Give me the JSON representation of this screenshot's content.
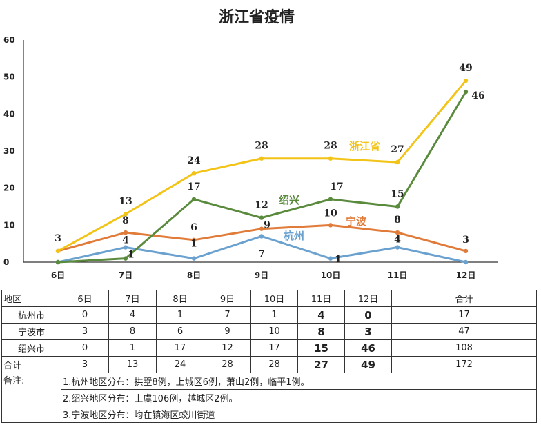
{
  "chart_data": {
    "type": "line",
    "title": "浙江省疫情",
    "categories": [
      "6日",
      "7日",
      "8日",
      "9日",
      "10日",
      "11日",
      "12日"
    ],
    "yticks": [
      "0",
      "10",
      "20",
      "30",
      "40",
      "50",
      "60"
    ],
    "ylim": [
      0,
      60
    ],
    "grid": false,
    "series": [
      {
        "name": "浙江省",
        "color": "#f2c418",
        "values": [
          3,
          13,
          24,
          28,
          28,
          27,
          49
        ]
      },
      {
        "name": "绍兴",
        "color": "#5a8a3c",
        "values": [
          0,
          1,
          17,
          12,
          17,
          15,
          46
        ]
      },
      {
        "name": "宁波",
        "color": "#e07b39",
        "values": [
          3,
          8,
          6,
          9,
          10,
          8,
          3
        ]
      },
      {
        "name": "杭州",
        "color": "#6aa1cf",
        "values": [
          0,
          4,
          1,
          7,
          1,
          4,
          0
        ]
      }
    ],
    "point_labels": [
      {
        "text": "3",
        "series": 0,
        "index": 0
      },
      {
        "text": "13",
        "series": 0,
        "index": 1
      },
      {
        "text": "24",
        "series": 0,
        "index": 2
      },
      {
        "text": "28",
        "series": 0,
        "index": 3
      },
      {
        "text": "28",
        "series": 0,
        "index": 4
      },
      {
        "text": "27",
        "series": 0,
        "index": 5
      },
      {
        "text": "49",
        "series": 0,
        "index": 6
      },
      {
        "text": "46",
        "series": 1,
        "index": 6
      },
      {
        "text": "17",
        "series": 1,
        "index": 2
      },
      {
        "text": "12",
        "series": 1,
        "index": 3
      },
      {
        "text": "17",
        "series": 1,
        "index": 4
      },
      {
        "text": "15",
        "series": 1,
        "index": 5
      },
      {
        "text": "1",
        "series": 1,
        "index": 1
      },
      {
        "text": "8",
        "series": 2,
        "index": 1
      },
      {
        "text": "6",
        "series": 2,
        "index": 2
      },
      {
        "text": "9",
        "series": 2,
        "index": 3
      },
      {
        "text": "10",
        "series": 2,
        "index": 4
      },
      {
        "text": "8",
        "series": 2,
        "index": 5
      },
      {
        "text": "3",
        "series": 2,
        "index": 6
      },
      {
        "text": "4",
        "series": 3,
        "index": 1
      },
      {
        "text": "1",
        "series": 3,
        "index": 2
      },
      {
        "text": "7",
        "series": 3,
        "index": 3
      },
      {
        "text": "1",
        "series": 3,
        "index": 4
      },
      {
        "text": "4",
        "series": 3,
        "index": 5
      }
    ]
  },
  "table": {
    "header": [
      "地区",
      "6日",
      "7日",
      "8日",
      "9日",
      "10日",
      "11日",
      "12日",
      "合计"
    ],
    "rows": [
      {
        "label": "杭州市",
        "cells": [
          "0",
          "4",
          "1",
          "7",
          "1",
          "4",
          "0",
          "17"
        ]
      },
      {
        "label": "宁波市",
        "cells": [
          "3",
          "8",
          "6",
          "9",
          "10",
          "8",
          "3",
          "47"
        ]
      },
      {
        "label": "绍兴市",
        "cells": [
          "0",
          "1",
          "17",
          "12",
          "17",
          "15",
          "46",
          "108"
        ]
      },
      {
        "label": "合计",
        "cells": [
          "3",
          "13",
          "24",
          "28",
          "28",
          "27",
          "49",
          "172"
        ]
      }
    ],
    "notes_label": "备注:",
    "notes": [
      "1.杭州地区分布：拱墅8例，上城区6例，萧山2例，临平1例。",
      "2.绍兴地区分布：上虞106例，越城区2例。",
      "3.宁波地区分布：均在镇海区蛟川街道"
    ]
  }
}
